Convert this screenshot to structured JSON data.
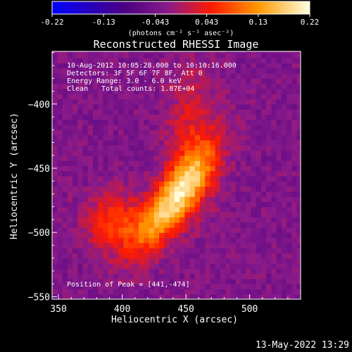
{
  "chart_data": {
    "type": "heatmap",
    "title": "Reconstructed RHESSI Image",
    "xlabel": "Heliocentric X (arcsec)",
    "ylabel": "Heliocentric Y (arcsec)",
    "xlim": [
      345,
      540
    ],
    "ylim": [
      -552,
      -359
    ],
    "x_ticks": [
      350,
      400,
      450,
      500
    ],
    "y_ticks": [
      -400,
      -450,
      -500,
      -550
    ],
    "colorbar": {
      "min": -0.22,
      "max": 0.22,
      "ticks": [
        "-0.22",
        "-0.13",
        "-0.043",
        "0.043",
        "0.13",
        "0.22"
      ],
      "units": "(photons cm⁻² s⁻¹ asec⁻²)",
      "colormap": [
        "#0000ff",
        "#4b0082",
        "#8a1b8a",
        "#ff1a00",
        "#ff9900",
        "#ffffe0"
      ]
    },
    "peak": {
      "x": 441,
      "y": -474,
      "value": 0.22
    },
    "annotations": {
      "time_range": "10-Aug-2012 10:05:28.000 to 10:10:16.000",
      "detectors": "Detectors: 3F 5F 6F 7F 8F, Att 0",
      "energy": "Energy Range: 3.0 - 6.0 keV",
      "clean_label": "Clean",
      "total_counts": "Total counts: 1.87E+04",
      "peak_position": "Position of Peak = [441,-474]"
    },
    "footer_timestamp": "13-May-2022 13:29"
  }
}
